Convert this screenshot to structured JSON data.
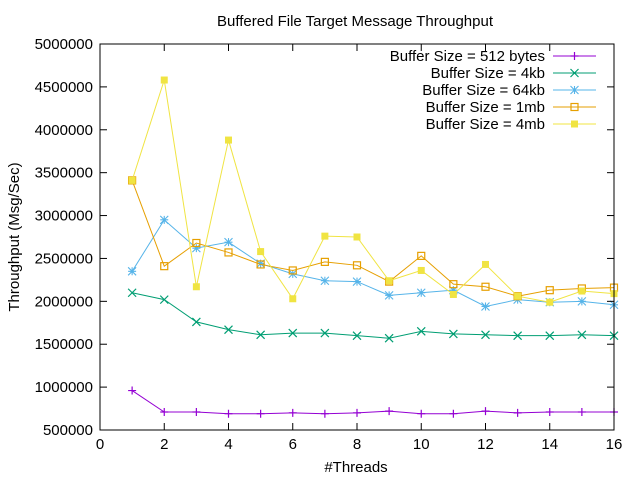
{
  "chart_data": {
    "type": "line",
    "title": "Buffered File Target Message Throughput",
    "xlabel": "#Threads",
    "ylabel": "Throughput (Msg/Sec)",
    "xlim": [
      0,
      16
    ],
    "ylim": [
      500000,
      5000000
    ],
    "xticks": [
      0,
      2,
      4,
      6,
      8,
      10,
      12,
      14,
      16
    ],
    "yticks": [
      500000,
      1000000,
      1500000,
      2000000,
      2500000,
      3000000,
      3500000,
      4000000,
      4500000,
      5000000
    ],
    "grid": false,
    "legend_position": "top-right",
    "x": [
      1,
      2,
      3,
      4,
      5,
      6,
      7,
      8,
      9,
      10,
      11,
      12,
      13,
      14,
      15,
      16
    ],
    "series": [
      {
        "name": "Buffer Size = 512 bytes",
        "color": "#9400d3",
        "marker": "plus",
        "values": [
          960000,
          710000,
          710000,
          690000,
          690000,
          700000,
          690000,
          700000,
          720000,
          690000,
          690000,
          720000,
          700000,
          710000,
          710000,
          710000
        ]
      },
      {
        "name": "Buffer Size = 4kb",
        "color": "#009e73",
        "marker": "cross",
        "values": [
          2100000,
          2020000,
          1760000,
          1670000,
          1610000,
          1630000,
          1630000,
          1600000,
          1570000,
          1650000,
          1620000,
          1610000,
          1600000,
          1600000,
          1610000,
          1600000
        ]
      },
      {
        "name": "Buffer Size = 64kb",
        "color": "#56b4e9",
        "marker": "star",
        "values": [
          2350000,
          2950000,
          2620000,
          2690000,
          2440000,
          2320000,
          2240000,
          2230000,
          2070000,
          2100000,
          2130000,
          1940000,
          2020000,
          1990000,
          2000000,
          1960000
        ]
      },
      {
        "name": "Buffer Size = 1mb",
        "color": "#e69f00",
        "marker": "open-square",
        "values": [
          3410000,
          2410000,
          2680000,
          2570000,
          2430000,
          2360000,
          2460000,
          2420000,
          2230000,
          2530000,
          2200000,
          2170000,
          2060000,
          2130000,
          2150000,
          2160000
        ]
      },
      {
        "name": "Buffer Size = 4mb",
        "color": "#f0e442",
        "marker": "filled-square",
        "values": [
          3410000,
          4580000,
          2170000,
          3880000,
          2580000,
          2030000,
          2760000,
          2750000,
          2240000,
          2360000,
          2080000,
          2430000,
          2060000,
          1990000,
          2120000,
          2090000
        ]
      }
    ]
  }
}
